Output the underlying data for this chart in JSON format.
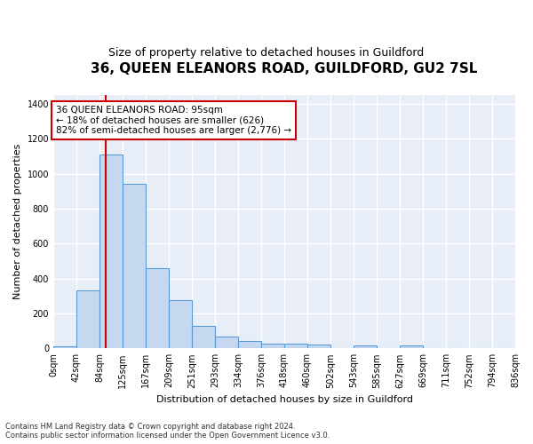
{
  "title": "36, QUEEN ELEANORS ROAD, GUILDFORD, GU2 7SL",
  "subtitle": "Size of property relative to detached houses in Guildford",
  "xlabel": "Distribution of detached houses by size in Guildford",
  "ylabel": "Number of detached properties",
  "tick_labels": [
    "0sqm",
    "42sqm",
    "84sqm",
    "125sqm",
    "167sqm",
    "209sqm",
    "251sqm",
    "293sqm",
    "334sqm",
    "376sqm",
    "418sqm",
    "460sqm",
    "502sqm",
    "543sqm",
    "585sqm",
    "627sqm",
    "669sqm",
    "711sqm",
    "752sqm",
    "794sqm",
    "836sqm"
  ],
  "bar_heights": [
    10,
    330,
    1110,
    940,
    460,
    275,
    130,
    70,
    40,
    25,
    25,
    20,
    0,
    15,
    0,
    15,
    0,
    0,
    0,
    0
  ],
  "bar_color": "#c5d8f0",
  "bar_edge_color": "#5b9bd5",
  "vline_color": "#cc0000",
  "vline_x_sqm": 95,
  "annotation_text": "36 QUEEN ELEANORS ROAD: 95sqm\n← 18% of detached houses are smaller (626)\n82% of semi-detached houses are larger (2,776) →",
  "annotation_box_color": "#cc0000",
  "ylim": [
    0,
    1450
  ],
  "yticks": [
    0,
    200,
    400,
    600,
    800,
    1000,
    1200,
    1400
  ],
  "footer": "Contains HM Land Registry data © Crown copyright and database right 2024.\nContains public sector information licensed under the Open Government Licence v3.0.",
  "fig_bg_color": "#ffffff",
  "ax_bg_color": "#e8eef8",
  "grid_color": "#ffffff",
  "title_fontsize": 11,
  "subtitle_fontsize": 9,
  "axis_label_fontsize": 8,
  "tick_fontsize": 7,
  "annotation_fontsize": 7.5,
  "footer_fontsize": 6
}
